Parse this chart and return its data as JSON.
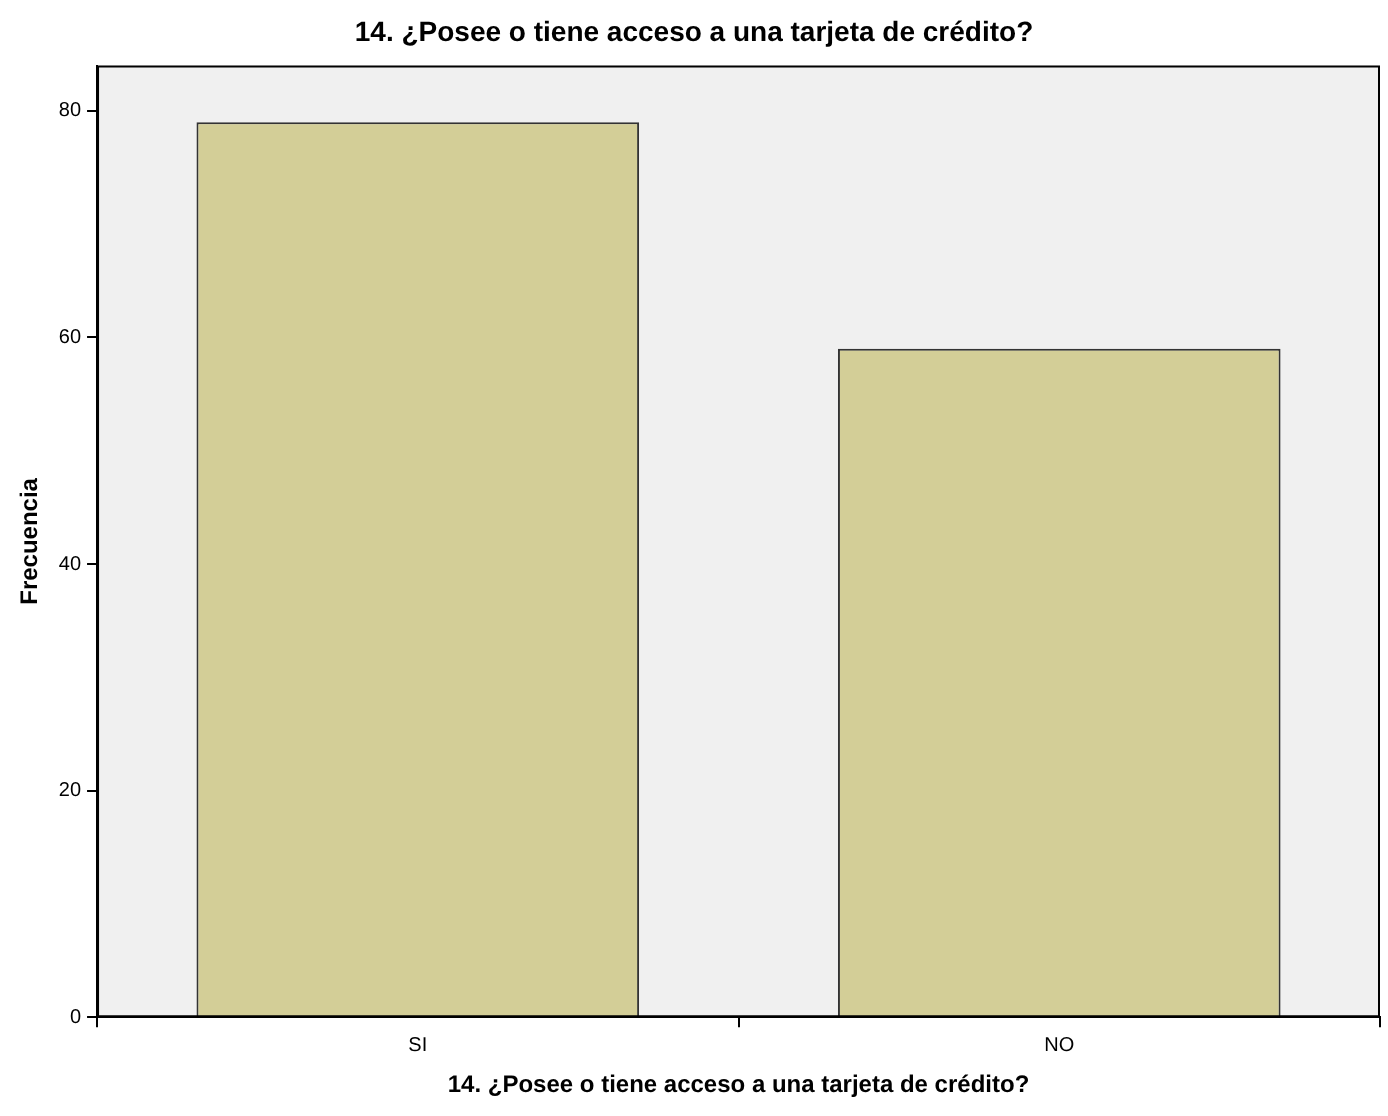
{
  "chart_data": {
    "type": "bar",
    "title": "14. ¿Posee o tiene acceso a una tarjeta de crédito?",
    "xlabel": "14. ¿Posee o tiene acceso a una tarjeta de crédito?",
    "ylabel": "Frecuencia",
    "categories": [
      "SI",
      "NO"
    ],
    "values": [
      79,
      59
    ],
    "color": "#d3ce97",
    "ylim": [
      0,
      84
    ],
    "yticks": [
      0,
      20,
      40,
      60,
      80
    ],
    "grid": false,
    "legend": false
  }
}
